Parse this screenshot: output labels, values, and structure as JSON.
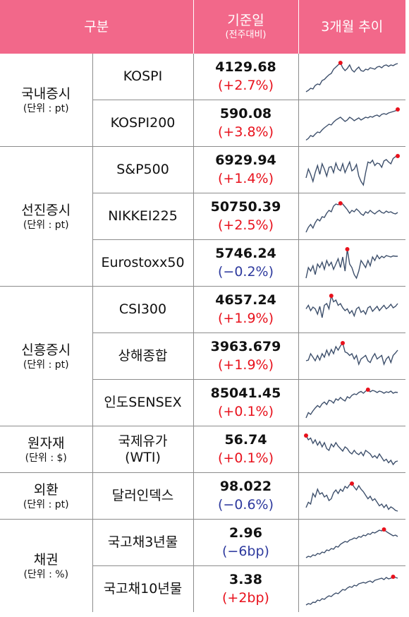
{
  "header": {
    "category": "구분",
    "base_date": "기준일",
    "base_date_sub": "(전주대비)",
    "trend": "3개월 추이"
  },
  "colors": {
    "header_bg": "#f2688a",
    "up": "#e8111c",
    "down": "#2e3a9e",
    "spark_line": "#3d4f6b",
    "spark_marker": "#e8111c"
  },
  "groups": [
    {
      "name": "국내증시",
      "unit": "(단위 : pt)",
      "rows": [
        {
          "name": "KOSPI",
          "value": "4129.68",
          "change": "(+2.7%)",
          "dir": "up",
          "trend": [
            0.1,
            0.14,
            0.2,
            0.18,
            0.28,
            0.32,
            0.3,
            0.42,
            0.45,
            0.52,
            0.58,
            0.62,
            0.74,
            0.8,
            0.86,
            0.92,
            0.78,
            0.7,
            0.76,
            0.86,
            0.72,
            0.66,
            0.74,
            0.8,
            0.7,
            0.68,
            0.74,
            0.72,
            0.78,
            0.76,
            0.74,
            0.8,
            0.82,
            0.78,
            0.84,
            0.86,
            0.82,
            0.86,
            0.84,
            0.88,
            0.9
          ]
        },
        {
          "name": "KOSPI200",
          "value": "590.08",
          "change": "(+3.8%)",
          "dir": "up",
          "trend": [
            0.05,
            0.1,
            0.18,
            0.15,
            0.22,
            0.28,
            0.26,
            0.34,
            0.4,
            0.45,
            0.5,
            0.48,
            0.56,
            0.62,
            0.66,
            0.7,
            0.64,
            0.58,
            0.62,
            0.7,
            0.66,
            0.6,
            0.64,
            0.68,
            0.62,
            0.66,
            0.7,
            0.68,
            0.72,
            0.7,
            0.74,
            0.76,
            0.72,
            0.78,
            0.8,
            0.78,
            0.82,
            0.84,
            0.86,
            0.88,
            0.92
          ]
        }
      ]
    },
    {
      "name": "선진증시",
      "unit": "(단위 : pt)",
      "rows": [
        {
          "name": "S&P500",
          "value": "6929.94",
          "change": "(+1.4%)",
          "dir": "up",
          "trend": [
            0.3,
            0.55,
            0.4,
            0.2,
            0.45,
            0.65,
            0.4,
            0.7,
            0.55,
            0.35,
            0.6,
            0.62,
            0.45,
            0.72,
            0.55,
            0.5,
            0.7,
            0.45,
            0.6,
            0.75,
            0.5,
            0.55,
            0.68,
            0.35,
            0.2,
            0.1,
            0.45,
            0.75,
            0.72,
            0.8,
            0.65,
            0.72,
            0.7,
            0.6,
            0.78,
            0.82,
            0.75,
            0.7,
            0.85,
            0.9,
            0.92
          ]
        },
        {
          "name": "NIKKEI225",
          "value": "50750.39",
          "change": "(+2.5%)",
          "dir": "up",
          "trend": [
            0.08,
            0.22,
            0.3,
            0.2,
            0.35,
            0.45,
            0.4,
            0.52,
            0.5,
            0.62,
            0.7,
            0.66,
            0.82,
            0.88,
            0.86,
            0.9,
            0.88,
            0.8,
            0.72,
            0.62,
            0.7,
            0.66,
            0.74,
            0.68,
            0.6,
            0.56,
            0.66,
            0.62,
            0.7,
            0.64,
            0.6,
            0.66,
            0.7,
            0.64,
            0.62,
            0.68,
            0.64,
            0.66,
            0.62,
            0.6,
            0.64
          ]
        },
        {
          "name": "Eurostoxx50",
          "value": "5746.24",
          "change": "(−0.2%)",
          "dir": "down",
          "trend": [
            0.1,
            0.4,
            0.3,
            0.45,
            0.2,
            0.5,
            0.4,
            0.55,
            0.35,
            0.6,
            0.45,
            0.55,
            0.35,
            0.5,
            0.65,
            0.4,
            0.7,
            0.3,
            0.92,
            0.5,
            0.4,
            0.2,
            0.1,
            0.3,
            0.6,
            0.5,
            0.4,
            0.6,
            0.45,
            0.7,
            0.6,
            0.75,
            0.65,
            0.72,
            0.68,
            0.74,
            0.72,
            0.7,
            0.73,
            0.72,
            0.72
          ]
        }
      ]
    },
    {
      "name": "신흥증시",
      "unit": "(단위 : pt)",
      "rows": [
        {
          "name": "CSI300",
          "value": "4657.24",
          "change": "(+1.9%)",
          "dir": "up",
          "trend": [
            0.55,
            0.65,
            0.5,
            0.6,
            0.55,
            0.4,
            0.62,
            0.3,
            0.65,
            0.7,
            0.55,
            0.92,
            0.75,
            0.8,
            0.65,
            0.7,
            0.58,
            0.5,
            0.55,
            0.42,
            0.5,
            0.35,
            0.55,
            0.6,
            0.45,
            0.5,
            0.4,
            0.58,
            0.62,
            0.48,
            0.55,
            0.62,
            0.5,
            0.58,
            0.65,
            0.55,
            0.6,
            0.68,
            0.58,
            0.62,
            0.7
          ]
        },
        {
          "name": "상해종합",
          "value": "3963.679",
          "change": "(+1.9%)",
          "dir": "up",
          "trend": [
            0.4,
            0.42,
            0.6,
            0.5,
            0.4,
            0.55,
            0.42,
            0.6,
            0.5,
            0.7,
            0.55,
            0.72,
            0.6,
            0.8,
            0.7,
            0.82,
            0.9,
            0.65,
            0.62,
            0.55,
            0.6,
            0.45,
            0.55,
            0.3,
            0.45,
            0.5,
            0.55,
            0.4,
            0.35,
            0.5,
            0.6,
            0.45,
            0.5,
            0.55,
            0.3,
            0.45,
            0.52,
            0.35,
            0.55,
            0.62,
            0.7
          ]
        },
        {
          "name": "인도SENSEX",
          "value": "85041.45",
          "change": "(+0.1%)",
          "dir": "up",
          "trend": [
            0.1,
            0.25,
            0.2,
            0.3,
            0.38,
            0.45,
            0.4,
            0.5,
            0.55,
            0.48,
            0.6,
            0.58,
            0.52,
            0.64,
            0.6,
            0.68,
            0.62,
            0.58,
            0.7,
            0.66,
            0.74,
            0.78,
            0.76,
            0.82,
            0.85,
            0.8,
            0.86,
            0.9,
            0.84,
            0.88,
            0.86,
            0.82,
            0.86,
            0.84,
            0.8,
            0.84,
            0.82,
            0.86,
            0.8,
            0.83,
            0.82
          ]
        }
      ]
    },
    {
      "name": "원자재",
      "unit": "(단위 : $)",
      "rows": [
        {
          "name": "국제유가\n(WTI)",
          "value": "56.74",
          "change": "(+0.1%)",
          "dir": "up",
          "trend": [
            0.92,
            0.8,
            0.85,
            0.7,
            0.8,
            0.65,
            0.75,
            0.6,
            0.72,
            0.55,
            0.5,
            0.68,
            0.6,
            0.72,
            0.62,
            0.55,
            0.48,
            0.6,
            0.55,
            0.45,
            0.4,
            0.5,
            0.42,
            0.38,
            0.45,
            0.35,
            0.5,
            0.45,
            0.4,
            0.3,
            0.35,
            0.28,
            0.4,
            0.3,
            0.2,
            0.25,
            0.15,
            0.22,
            0.1,
            0.18,
            0.2
          ]
        }
      ]
    },
    {
      "name": "외환",
      "unit": "(단위 : pt)",
      "rows": [
        {
          "name": "달러인덱스",
          "value": "98.022",
          "change": "(−0.6%)",
          "dir": "down",
          "trend": [
            0.2,
            0.35,
            0.3,
            0.6,
            0.5,
            0.72,
            0.58,
            0.62,
            0.5,
            0.55,
            0.4,
            0.45,
            0.62,
            0.7,
            0.6,
            0.72,
            0.66,
            0.8,
            0.75,
            0.85,
            0.88,
            0.78,
            0.7,
            0.82,
            0.72,
            0.65,
            0.55,
            0.45,
            0.52,
            0.4,
            0.45,
            0.35,
            0.25,
            0.3,
            0.2,
            0.28,
            0.15,
            0.22,
            0.18,
            0.12,
            0.1
          ]
        }
      ]
    },
    {
      "name": "채권",
      "unit": "(단위 : %)",
      "rows": [
        {
          "name": "국고채3년물",
          "value": "2.96",
          "change": "(−6bp)",
          "dir": "down",
          "trend": [
            0.1,
            0.14,
            0.12,
            0.18,
            0.16,
            0.22,
            0.2,
            0.26,
            0.24,
            0.32,
            0.3,
            0.36,
            0.34,
            0.42,
            0.4,
            0.48,
            0.52,
            0.56,
            0.54,
            0.6,
            0.62,
            0.66,
            0.64,
            0.7,
            0.68,
            0.74,
            0.72,
            0.78,
            0.76,
            0.82,
            0.8,
            0.84,
            0.88,
            0.86,
            0.9,
            0.84,
            0.8,
            0.76,
            0.72,
            0.74,
            0.7
          ]
        },
        {
          "name": "국고채10년물",
          "value": "3.38",
          "change": "(+2bp)",
          "dir": "up",
          "trend": [
            0.08,
            0.12,
            0.1,
            0.16,
            0.15,
            0.22,
            0.2,
            0.26,
            0.24,
            0.3,
            0.34,
            0.32,
            0.38,
            0.42,
            0.4,
            0.46,
            0.52,
            0.5,
            0.56,
            0.6,
            0.58,
            0.64,
            0.62,
            0.68,
            0.7,
            0.72,
            0.7,
            0.74,
            0.76,
            0.72,
            0.78,
            0.8,
            0.82,
            0.84,
            0.8,
            0.86,
            0.82,
            0.84,
            0.88,
            0.86,
            0.84
          ]
        }
      ]
    }
  ]
}
